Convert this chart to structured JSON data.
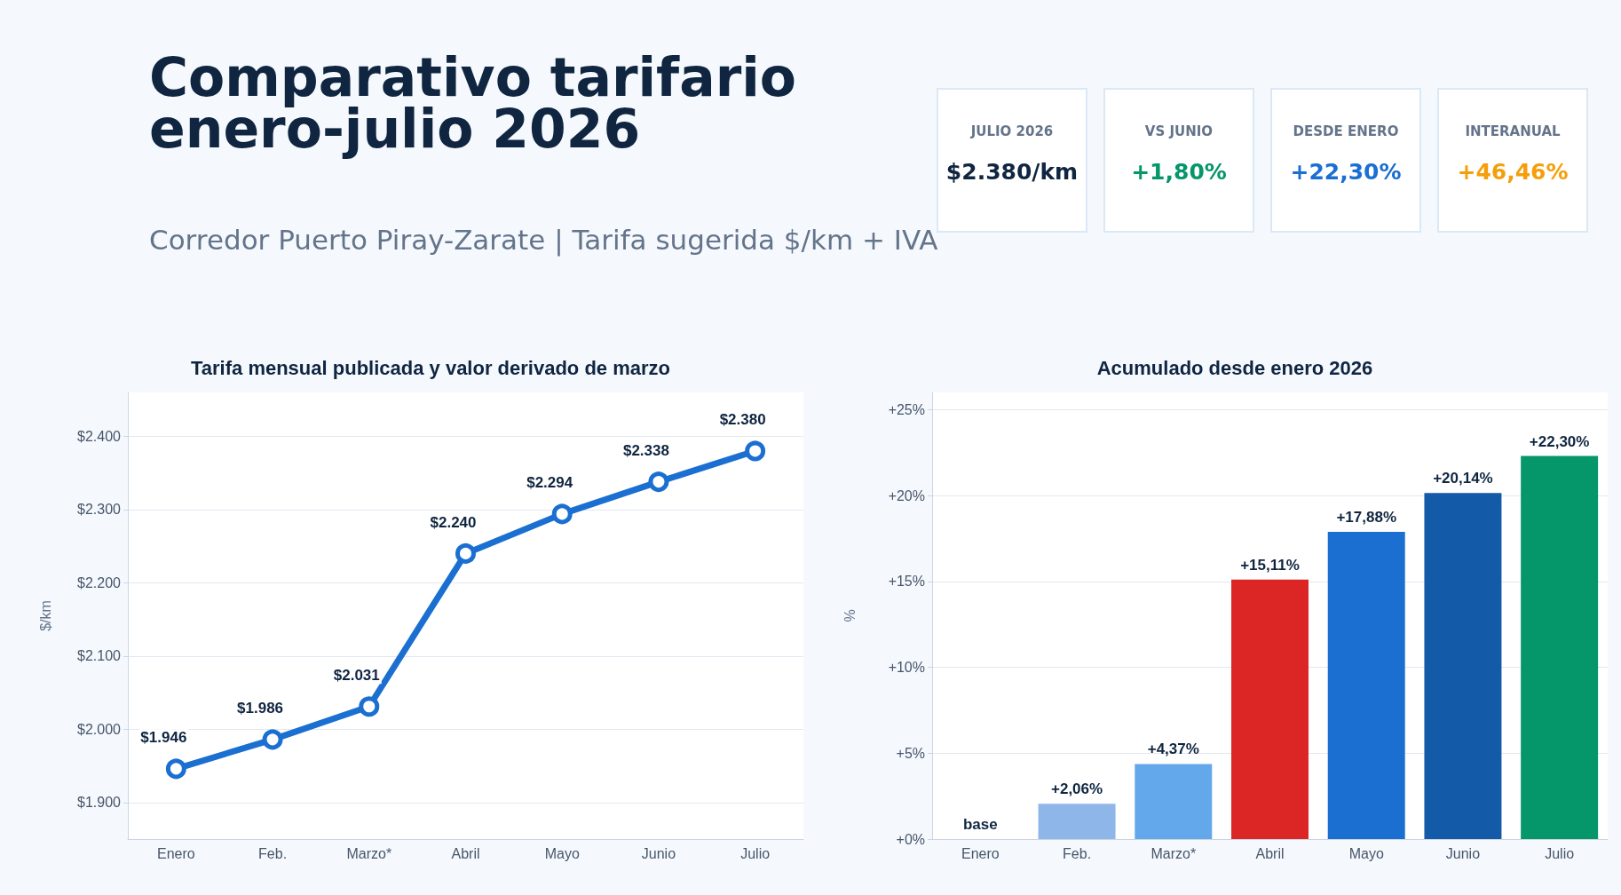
{
  "chart_data": [
    {
      "type": "other",
      "title": "Comparativo tarifario enero-julio 2026",
      "subtitle": "Corredor Puerto Piray-Zarate | Tarifa sugerida $/km + IVA",
      "annotations": [
        "JULIO 2026",
        "$2.380/km",
        "VS JUNIO",
        "+1,80%",
        "DESDE ENERO",
        "+22,30%",
        "INTERANUAL",
        "+46,46%"
      ],
      "colors": [
        "#0f2540",
        "#059669",
        "#1a6fd1",
        "#f59e0b"
      ]
    },
    {
      "type": "line",
      "title": "Tarifa mensual publicada y valor derivado de marzo",
      "ylabel": "$/km",
      "categories": [
        "Enero",
        "Feb.",
        "Marzo*",
        "Abril",
        "Mayo",
        "Junio",
        "Julio"
      ],
      "values": [
        1946,
        1986,
        2031,
        2240,
        2294,
        2338,
        2380
      ],
      "value_labels": [
        "$1.946",
        "$1.986",
        "$2.031",
        "$2.240",
        "$2.294",
        "$2.338",
        "$2.380"
      ],
      "color": "#1a6fd1",
      "marker": "circle",
      "grid": "y",
      "ylim": [
        1850,
        2460
      ],
      "yticks": [
        {
          "value": 1900,
          "label": "$1.900"
        },
        {
          "value": 2000,
          "label": "$2.000"
        },
        {
          "value": 2100,
          "label": "$2.100"
        },
        {
          "value": 2200,
          "label": "$2.200"
        },
        {
          "value": 2300,
          "label": "$2.300"
        },
        {
          "value": 2400,
          "label": "$2.400"
        }
      ]
    },
    {
      "type": "bar",
      "title": "Acumulado desde enero 2026",
      "ylabel": "%",
      "categories": [
        "Enero",
        "Feb.",
        "Marzo*",
        "Abril",
        "Mayo",
        "Junio",
        "Julio"
      ],
      "values": [
        0,
        2.06,
        4.37,
        15.11,
        17.88,
        20.14,
        22.3
      ],
      "value_labels": [
        "base",
        "+2,06%",
        "+4,37%",
        "+15,11%",
        "+17,88%",
        "+20,14%",
        "+22,30%"
      ],
      "colors": [
        "#8fb6e8",
        "#8fb6e8",
        "#64a8ec",
        "#dc2626",
        "#1a6fd1",
        "#135aa8",
        "#059669"
      ],
      "grid": "y",
      "ylim": [
        0,
        26
      ],
      "yticks": [
        {
          "value": 0,
          "label": "+0%"
        },
        {
          "value": 5,
          "label": "+5%"
        },
        {
          "value": 10,
          "label": "+10%"
        },
        {
          "value": 15,
          "label": "+15%"
        },
        {
          "value": 20,
          "label": "+20%"
        },
        {
          "value": 25,
          "label": "+25%"
        }
      ]
    }
  ]
}
